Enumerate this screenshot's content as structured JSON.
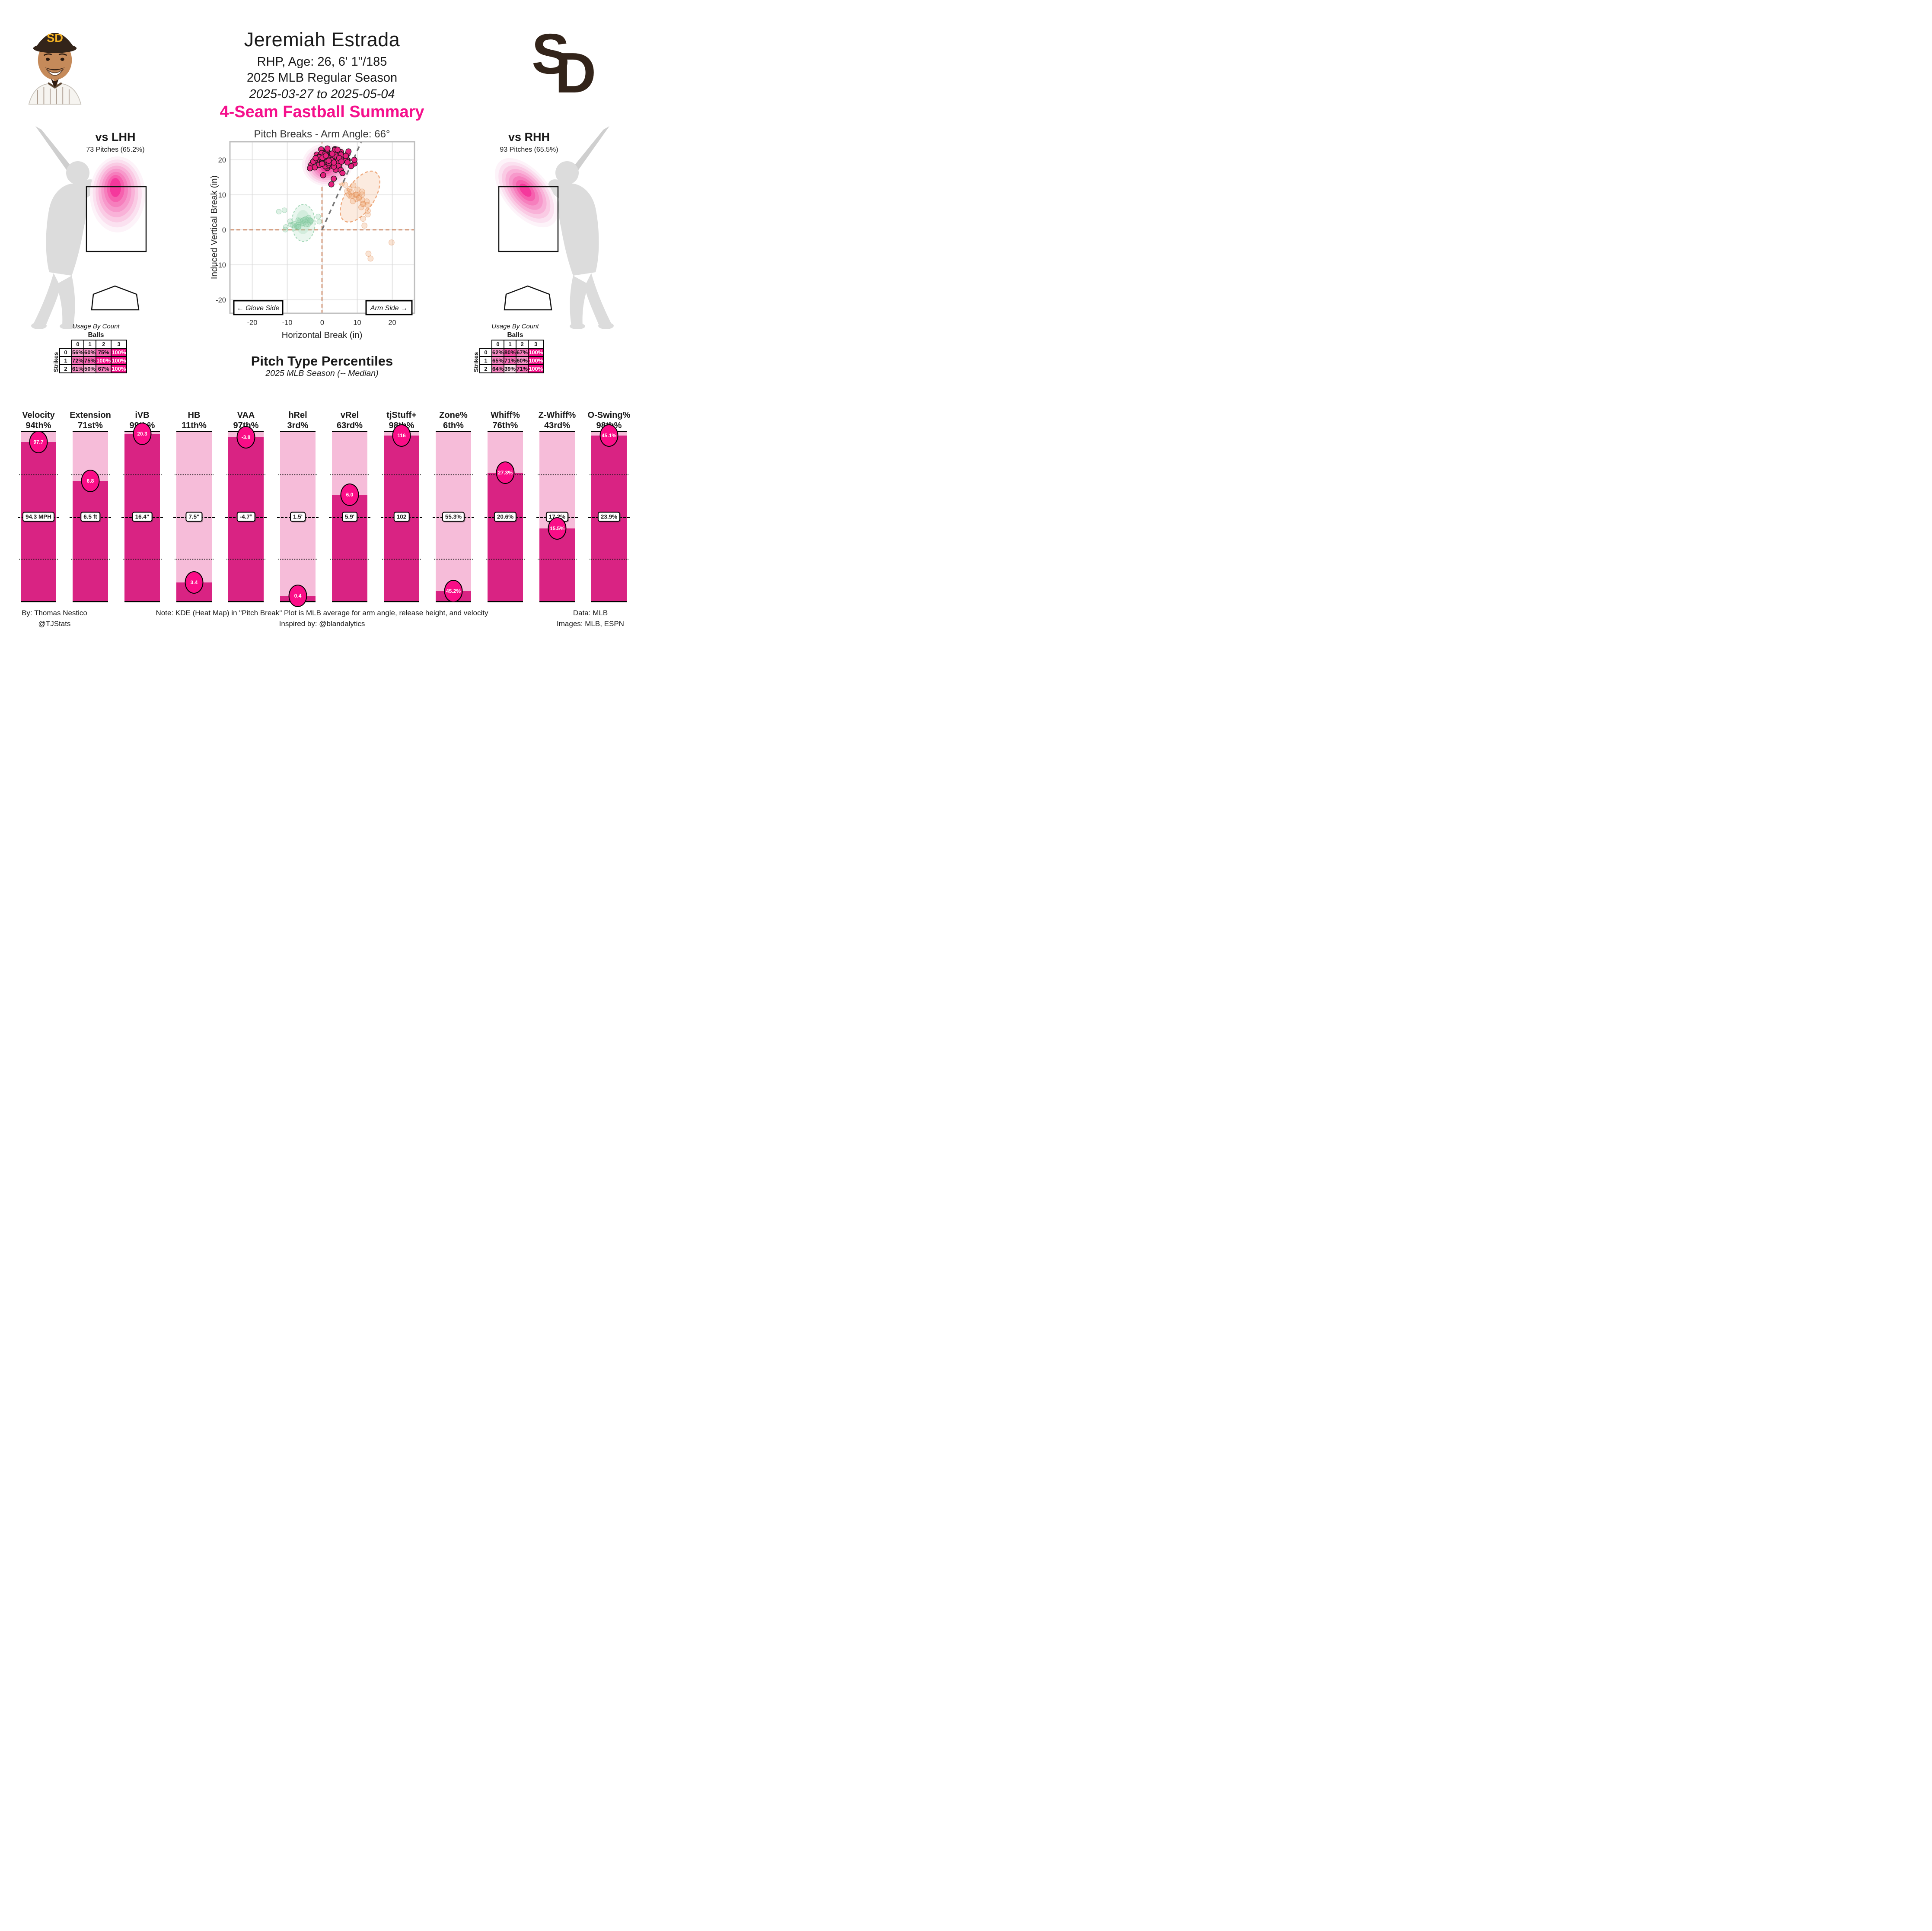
{
  "header": {
    "name": "Jeremiah Estrada",
    "bio": "RHP, Age: 26, 6' 1\"/185",
    "season": "2025 MLB Regular Season",
    "date_range": "2025-03-27 to 2025-05-04"
  },
  "team": {
    "abbr": "SD"
  },
  "summary_title": "4-Seam Fastball Summary",
  "colors": {
    "accent_pink": "#F5108C",
    "bar_dark": "#D92383",
    "bar_light": "#F6BCD9",
    "badge_pink": "#FA0D87",
    "usage_low": "#FDE9F3",
    "usage_high": "#F40E88",
    "team_brown": "#33241A",
    "team_gold": "#F4B223",
    "silhouette_gray": "#DCDCDC",
    "crosshair_orange": "#C8805A",
    "dot_pink": "#E6207E",
    "dot_orange": "#F0A471",
    "dot_green": "#9CD6B2"
  },
  "panels": {
    "lhh": {
      "title": "vs LHH",
      "subtitle": "73 Pitches (65.2%)"
    },
    "rhh": {
      "title": "vs RHH",
      "subtitle": "93 Pitches (65.5%)"
    }
  },
  "usage_tables": {
    "title": "Usage By Count",
    "x_label": "Balls",
    "y_label": "Strikes",
    "col_headers": [
      "0",
      "1",
      "2",
      "3"
    ],
    "row_headers": [
      "0",
      "1",
      "2"
    ],
    "lhh_values": [
      [
        "56%",
        "60%",
        "75%",
        "100%"
      ],
      [
        "72%",
        "75%",
        "100%",
        "100%"
      ],
      [
        "61%",
        "50%",
        "67%",
        "100%"
      ]
    ],
    "rhh_values": [
      [
        "62%",
        "80%",
        "67%",
        "100%"
      ],
      [
        "65%",
        "71%",
        "60%",
        "100%"
      ],
      [
        "64%",
        "39%",
        "71%",
        "100%"
      ]
    ]
  },
  "chart_data": [
    {
      "id": "pitch_breaks",
      "type": "scatter",
      "title": "Pitch Breaks - Arm Angle: 66°",
      "arm_angle_deg": 66,
      "xlabel": "Horizontal Break (in)",
      "ylabel": "Induced Vertical Break (in)",
      "xlim": [
        -26,
        26
      ],
      "ylim": [
        -24,
        25
      ],
      "xticks": [
        -20,
        -10,
        0,
        10,
        20
      ],
      "yticks": [
        20,
        10,
        0,
        -10,
        -20
      ],
      "grid": true,
      "annotations": [
        "← Glove Side",
        "Arm Side →"
      ],
      "series": [
        {
          "name": "pink-4seam",
          "center": [
            2.2,
            20.2
          ],
          "spread": [
            2.9,
            1.4
          ],
          "tilt_deg": 0,
          "count": 105,
          "outliers": [
            [
              3.3,
              14.6
            ],
            [
              2.6,
              13.0
            ],
            [
              5.8,
              16.2
            ],
            [
              -3.5,
              17.6
            ]
          ]
        },
        {
          "name": "faded-orange",
          "center": [
            10.2,
            9.2
          ],
          "spread": [
            2.9,
            1.3
          ],
          "tilt_deg": -55,
          "count": 30,
          "outliers": [
            [
              13.2,
              -6.8
            ],
            [
              13.8,
              -8.2
            ],
            [
              19.8,
              -3.6
            ]
          ]
        },
        {
          "name": "faded-green",
          "center": [
            -5.2,
            2.0
          ],
          "spread": [
            1.1,
            2.2
          ],
          "tilt_deg": -75,
          "count": 34,
          "outliers": [
            [
              -10.8,
              5.6
            ],
            [
              -12.4,
              5.2
            ]
          ]
        }
      ]
    },
    {
      "id": "pitch_type_percentiles",
      "type": "bar",
      "title": "Pitch Type Percentiles",
      "subtitle": "2025 MLB Season (-- Median)",
      "ylim": [
        0,
        100
      ],
      "metrics": [
        {
          "name": "Velocity",
          "percentile": 94,
          "percentile_label": "94th%",
          "value": "97.7",
          "median": "94.3 MPH"
        },
        {
          "name": "Extension",
          "percentile": 71,
          "percentile_label": "71st%",
          "value": "6.8",
          "median": "6.5 ft"
        },
        {
          "name": "iVB",
          "percentile": 99,
          "percentile_label": "99th%",
          "value": "20.3",
          "median": "16.4\""
        },
        {
          "name": "HB",
          "percentile": 11,
          "percentile_label": "11th%",
          "value": "3.4",
          "median": "7.5\""
        },
        {
          "name": "VAA",
          "percentile": 97,
          "percentile_label": "97th%",
          "value": "-3.8",
          "median": "-4.7°"
        },
        {
          "name": "hRel",
          "percentile": 3,
          "percentile_label": "3rd%",
          "value": "0.4",
          "median": "1.5'"
        },
        {
          "name": "vRel",
          "percentile": 63,
          "percentile_label": "63rd%",
          "value": "6.0",
          "median": "5.9'"
        },
        {
          "name": "tjStuff+",
          "percentile": 98,
          "percentile_label": "98th%",
          "value": "116",
          "median": "102"
        },
        {
          "name": "Zone%",
          "percentile": 6,
          "percentile_label": "6th%",
          "value": "45.2%",
          "median": "55.3%"
        },
        {
          "name": "Whiff%",
          "percentile": 76,
          "percentile_label": "76th%",
          "value": "27.3%",
          "median": "20.6%"
        },
        {
          "name": "Z-Whiff%",
          "percentile": 43,
          "percentile_label": "43rd%",
          "value": "15.5%",
          "median": "17.2%"
        },
        {
          "name": "O-Swing%",
          "percentile": 98,
          "percentile_label": "98th%",
          "value": "45.1%",
          "median": "23.9%"
        }
      ]
    }
  ],
  "footer": {
    "left": [
      "By: Thomas Nestico",
      "@TJStats"
    ],
    "center": [
      "Note: KDE (Heat Map) in \"Pitch Break\" Plot is MLB average for arm angle, release height, and velocity",
      "Inspired by: @blandalytics"
    ],
    "right": [
      "Data: MLB",
      "Images: MLB, ESPN"
    ]
  }
}
